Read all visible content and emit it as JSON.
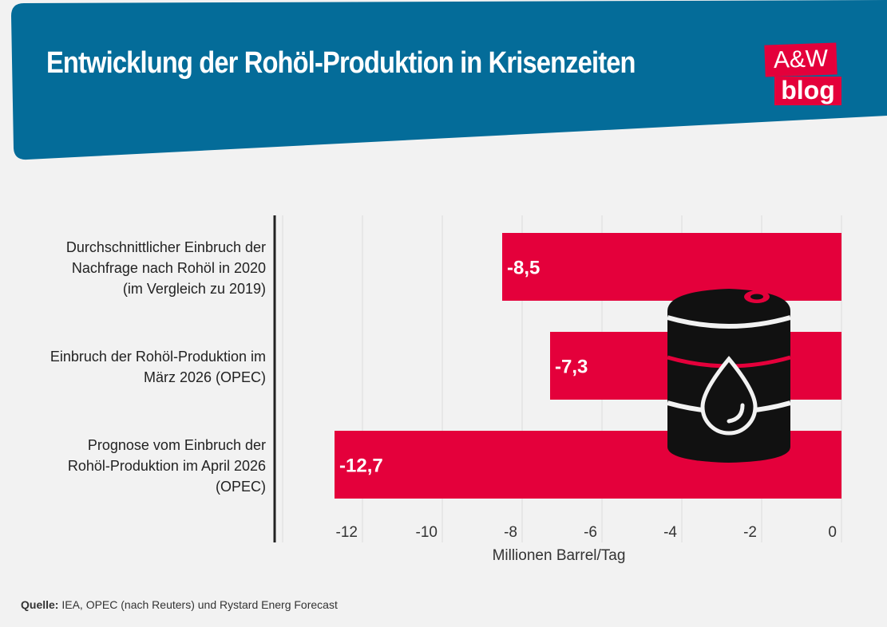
{
  "header": {
    "title": "Entwicklung der Rohöl-Produktion in Krisenzeiten",
    "logo_line1": "A&W",
    "logo_line2": "blog",
    "bg_color": "#046c99",
    "logo_color": "#e4003b"
  },
  "chart_data": {
    "type": "bar",
    "orientation": "horizontal",
    "categories": [
      [
        "Durchschnittlicher Einbruch der",
        "Nachfrage nach Rohöl in 2020",
        "(im Vergleich zu 2019)"
      ],
      [
        "Einbruch der Rohöl-Produktion im",
        "März 2026 (OPEC)"
      ],
      [
        "Prognose vom Einbruch der",
        "Rohöl-Produktion im April 2026",
        "(OPEC)"
      ]
    ],
    "values": [
      -8.5,
      -7.3,
      -12.7
    ],
    "data_labels": [
      "-8,5",
      "-7,3",
      "-12,7"
    ],
    "xlabel": "Millionen Barrel/Tag",
    "xlim": [
      -14,
      0
    ],
    "xticks": [
      -12,
      -10,
      -8,
      -6,
      -4,
      -2,
      0
    ],
    "grid": true,
    "bar_color": "#e4003b"
  },
  "source": {
    "label": "Quelle:",
    "text": "IEA, OPEC (nach Reuters) und Rystard Energ Forecast"
  }
}
